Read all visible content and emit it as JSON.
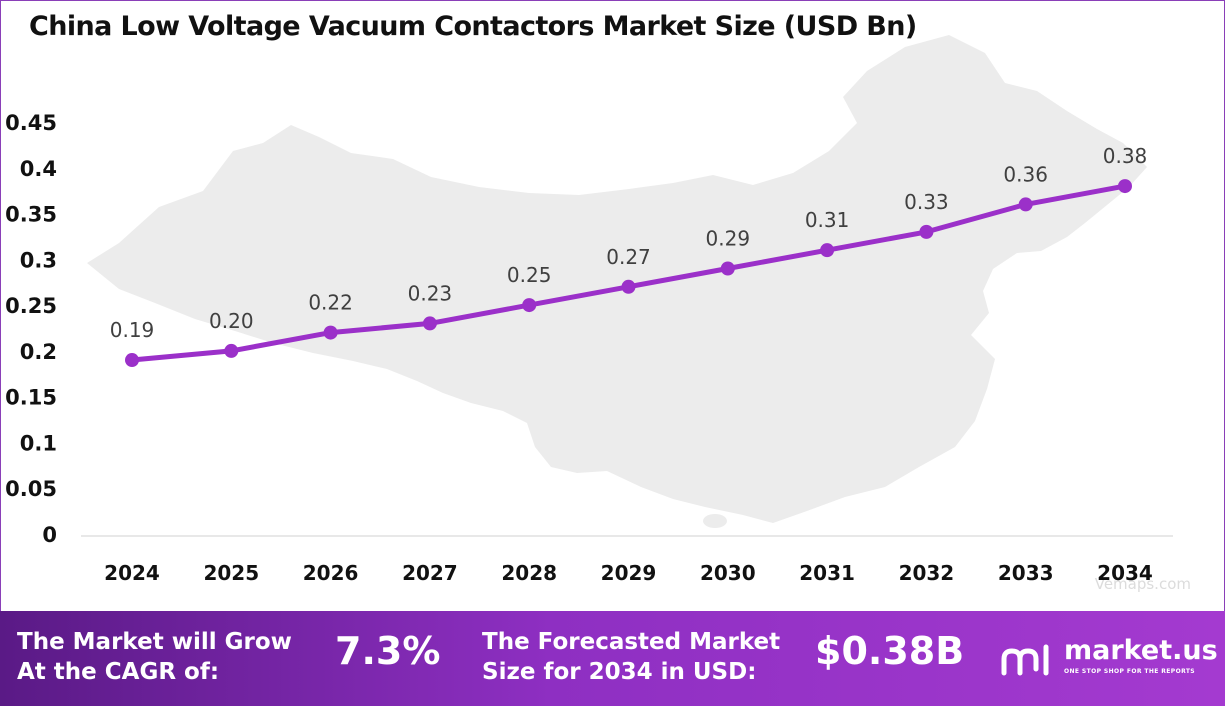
{
  "chart_data": {
    "type": "line",
    "title": "China Low Voltage Vacuum Contactors Market Size (USD Bn)",
    "categories": [
      "2024",
      "2025",
      "2026",
      "2027",
      "2028",
      "2029",
      "2030",
      "2031",
      "2032",
      "2033",
      "2034"
    ],
    "values": [
      0.19,
      0.2,
      0.22,
      0.23,
      0.25,
      0.27,
      0.29,
      0.31,
      0.33,
      0.36,
      0.38
    ],
    "data_labels": [
      "0.19",
      "0.20",
      "0.22",
      "0.23",
      "0.25",
      "0.27",
      "0.29",
      "0.31",
      "0.33",
      "0.36",
      "0.38"
    ],
    "y_ticks": [
      "0",
      "0.05",
      "0.1",
      "0.15",
      "0.2",
      "0.25",
      "0.3",
      "0.35",
      "0.4",
      "0.45"
    ],
    "ylim": [
      0,
      0.45
    ],
    "grid": false,
    "legend": "none",
    "line_color": "#9b30c9",
    "background_map": "China map silhouette (light gray)"
  },
  "watermark": "Vemaps.com",
  "footer": {
    "cagr_label_line1": "The Market will Grow",
    "cagr_label_line2": "At the CAGR of:",
    "cagr_value": "7.3%",
    "forecast_label_line1": "The Forecasted Market",
    "forecast_label_line2": "Size for 2034 in USD:",
    "forecast_value": "$0.38B",
    "brand": "market.us",
    "tagline": "ONE STOP SHOP FOR THE REPORTS",
    "gradient_colors": [
      "#5a1a86",
      "#a43ad0"
    ]
  }
}
